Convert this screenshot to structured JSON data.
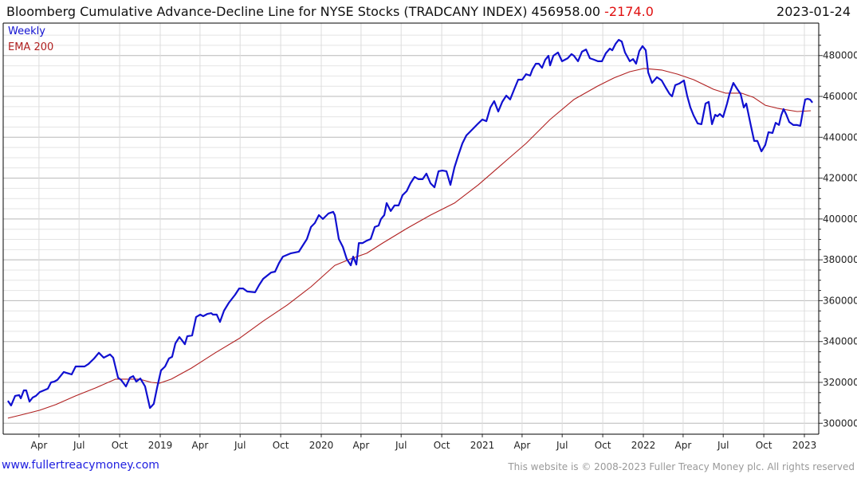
{
  "header": {
    "title": "Bloomberg Cumulative Advance-Decline Line for NYSE Stocks (TRADCANY INDEX)",
    "last_value": "456958.00",
    "change": "-2174.0",
    "date": "2023-01-24"
  },
  "footer": {
    "url": "www.fullertreacymoney.com",
    "copyright": "This website is © 2008-2023 Fuller Treacy Money plc. All rights reserved"
  },
  "colors": {
    "weekly": "#1010d0",
    "ema": "#b02020",
    "change": "#e01010"
  },
  "chart_data": {
    "type": "line",
    "title": "Bloomberg Cumulative Advance-Decline Line for NYSE Stocks (TRADCANY INDEX)",
    "xlabel": "",
    "ylabel": "",
    "ylim": [
      296000,
      494000
    ],
    "xlim": [
      2018.0,
      2023.1
    ],
    "grid": true,
    "legend_placement": "top-left",
    "y_ticks": [
      "300000",
      "320000",
      "340000",
      "360000",
      "380000",
      "400000",
      "420000",
      "440000",
      "460000",
      "480000"
    ],
    "x_ticks": [
      {
        "label": "Apr",
        "t": 2018.247
      },
      {
        "label": "Jul",
        "t": 2018.496
      },
      {
        "label": "Oct",
        "t": 2018.748
      },
      {
        "label": "2019",
        "t": 2019.0
      },
      {
        "label": "Apr",
        "t": 2019.247
      },
      {
        "label": "Jul",
        "t": 2019.496
      },
      {
        "label": "Oct",
        "t": 2019.748
      },
      {
        "label": "2020",
        "t": 2020.0
      },
      {
        "label": "Apr",
        "t": 2020.247
      },
      {
        "label": "Jul",
        "t": 2020.496
      },
      {
        "label": "Oct",
        "t": 2020.748
      },
      {
        "label": "2021",
        "t": 2021.0
      },
      {
        "label": "Apr",
        "t": 2021.247
      },
      {
        "label": "Jul",
        "t": 2021.496
      },
      {
        "label": "Oct",
        "t": 2021.748
      },
      {
        "label": "2022",
        "t": 2022.0
      },
      {
        "label": "Apr",
        "t": 2022.247
      },
      {
        "label": "Jul",
        "t": 2022.496
      },
      {
        "label": "Oct",
        "t": 2022.748
      },
      {
        "label": "2023",
        "t": 2023.0
      }
    ],
    "series": [
      {
        "name": "Weekly",
        "t": [
          2018.054,
          2018.074,
          2018.099,
          2018.124,
          2018.134,
          2018.153,
          2018.168,
          2018.188,
          2018.208,
          2018.228,
          2018.252,
          2018.277,
          2018.302,
          2018.322,
          2018.342,
          2018.361,
          2018.401,
          2018.416,
          2018.45,
          2018.475,
          2018.5,
          2018.53,
          2018.554,
          2018.589,
          2018.619,
          2018.649,
          2018.688,
          2018.708,
          2018.738,
          2018.757,
          2018.787,
          2018.812,
          2018.832,
          2018.851,
          2018.876,
          2018.906,
          2018.936,
          2018.946,
          2018.96,
          2018.98,
          2019.005,
          2019.03,
          2019.054,
          2019.074,
          2019.094,
          2019.119,
          2019.134,
          2019.153,
          2019.168,
          2019.198,
          2019.223,
          2019.248,
          2019.267,
          2019.292,
          2019.317,
          2019.327,
          2019.351,
          2019.371,
          2019.396,
          2019.426,
          2019.465,
          2019.49,
          2019.515,
          2019.54,
          2019.589,
          2019.614,
          2019.639,
          2019.688,
          2019.713,
          2019.738,
          2019.762,
          2019.812,
          2019.861,
          2019.911,
          2019.936,
          2019.96,
          2019.985,
          2020.01,
          2020.045,
          2020.074,
          2020.084,
          2020.109,
          2020.134,
          2020.158,
          2020.183,
          2020.198,
          2020.218,
          2020.233,
          2020.257,
          2020.282,
          2020.307,
          2020.332,
          2020.356,
          2020.371,
          2020.391,
          2020.406,
          2020.431,
          2020.455,
          2020.48,
          2020.505,
          2020.53,
          2020.554,
          2020.579,
          2020.604,
          2020.629,
          2020.653,
          2020.678,
          2020.703,
          2020.728,
          2020.752,
          2020.777,
          2020.802,
          2020.827,
          2020.851,
          2020.876,
          2020.901,
          2020.926,
          2020.95,
          2020.975,
          2021.0,
          2021.025,
          2021.05,
          2021.074,
          2021.099,
          2021.124,
          2021.149,
          2021.173,
          2021.198,
          2021.223,
          2021.248,
          2021.272,
          2021.297,
          2021.312,
          2021.332,
          2021.351,
          2021.371,
          2021.391,
          2021.411,
          2021.421,
          2021.441,
          2021.47,
          2021.495,
          2021.53,
          2021.554,
          2021.569,
          2021.594,
          2021.619,
          2021.644,
          2021.668,
          2021.693,
          2021.718,
          2021.743,
          2021.767,
          2021.792,
          2021.807,
          2021.827,
          2021.847,
          2021.866,
          2021.886,
          2021.916,
          2021.936,
          2021.955,
          2021.975,
          2021.995,
          2022.015,
          2022.03,
          2022.054,
          2022.084,
          2022.114,
          2022.139,
          2022.163,
          2022.178,
          2022.198,
          2022.223,
          2022.252,
          2022.272,
          2022.292,
          2022.312,
          2022.337,
          2022.361,
          2022.386,
          2022.406,
          2022.426,
          2022.446,
          2022.46,
          2022.475,
          2022.495,
          2022.52,
          2022.535,
          2022.559,
          2022.584,
          2022.604,
          2022.624,
          2022.639,
          2022.668,
          2022.688,
          2022.708,
          2022.733,
          2022.757,
          2022.777,
          2022.802,
          2022.822,
          2022.842,
          2022.856,
          2022.871,
          2022.886,
          2022.906,
          2022.931,
          2022.955,
          2022.975,
          2022.995,
          2023.005,
          2023.02,
          2023.035,
          2023.05
        ],
        "values": [
          311000,
          308700,
          313400,
          313800,
          312200,
          316100,
          316100,
          310600,
          312600,
          313400,
          315300,
          316100,
          316900,
          320000,
          320400,
          321200,
          325100,
          324700,
          323900,
          327800,
          327800,
          327800,
          329000,
          331700,
          334500,
          332100,
          333700,
          332100,
          322300,
          321200,
          318000,
          322300,
          323100,
          320400,
          321900,
          318000,
          307500,
          308300,
          309500,
          317300,
          325900,
          327800,
          331700,
          332500,
          339100,
          342200,
          340700,
          338700,
          342600,
          343000,
          352000,
          353200,
          352400,
          353500,
          353900,
          353200,
          353200,
          349600,
          355100,
          359000,
          362900,
          366000,
          366000,
          364500,
          364100,
          367600,
          370700,
          373800,
          374200,
          378500,
          381600,
          383200,
          384000,
          390200,
          396100,
          398000,
          401900,
          400000,
          402700,
          403500,
          401900,
          390200,
          386300,
          380500,
          377300,
          381600,
          377700,
          388200,
          388200,
          389400,
          390200,
          396100,
          396800,
          400000,
          401900,
          407800,
          403900,
          406600,
          406600,
          411700,
          413600,
          417500,
          420600,
          419500,
          419500,
          422200,
          417500,
          415500,
          423400,
          423700,
          423400,
          416700,
          425300,
          431200,
          437000,
          440900,
          442900,
          444800,
          446800,
          448700,
          447900,
          454600,
          457700,
          452600,
          457300,
          460400,
          458500,
          463500,
          468200,
          468200,
          470900,
          470200,
          473300,
          476000,
          476000,
          474000,
          478000,
          479900,
          475200,
          479900,
          481500,
          477200,
          478700,
          480700,
          479900,
          477200,
          481900,
          483000,
          478700,
          478000,
          477200,
          477200,
          481100,
          483400,
          482600,
          485700,
          487700,
          486900,
          481500,
          477200,
          478300,
          476000,
          482200,
          484600,
          482600,
          471700,
          466600,
          469400,
          467800,
          464300,
          461200,
          460000,
          465500,
          466300,
          467800,
          460400,
          454600,
          450700,
          446800,
          446400,
          456500,
          457300,
          446400,
          451000,
          450300,
          451400,
          449900,
          456500,
          461200,
          466600,
          463500,
          461200,
          454600,
          456500,
          445600,
          438200,
          438200,
          433100,
          436200,
          442500,
          442100,
          447100,
          446000,
          450700,
          453800,
          451400,
          447500,
          446000,
          446000,
          445600,
          454600,
          458500,
          458800,
          458500,
          456958
        ]
      },
      {
        "name": "EMA 200",
        "t": [
          2018.054,
          2018.153,
          2018.252,
          2018.351,
          2018.475,
          2018.599,
          2018.723,
          2018.797,
          2018.871,
          2018.946,
          2018.995,
          2019.069,
          2019.193,
          2019.342,
          2019.49,
          2019.639,
          2019.787,
          2019.936,
          2020.084,
          2020.183,
          2020.282,
          2020.381,
          2020.53,
          2020.678,
          2020.827,
          2020.975,
          2021.124,
          2021.272,
          2021.421,
          2021.569,
          2021.718,
          2021.817,
          2021.916,
          2022.005,
          2022.114,
          2022.213,
          2022.312,
          2022.436,
          2022.51,
          2022.609,
          2022.683,
          2022.757,
          2022.832,
          2022.955,
          2023.04
        ],
        "values": [
          302500,
          304400,
          306400,
          309100,
          313400,
          317300,
          321600,
          321600,
          321600,
          320000,
          319600,
          321600,
          327000,
          334500,
          341500,
          350000,
          357800,
          366800,
          377300,
          380500,
          383200,
          388200,
          395300,
          401900,
          407800,
          416700,
          426900,
          437000,
          448700,
          458500,
          465100,
          469000,
          472100,
          473700,
          472900,
          470900,
          468200,
          463500,
          461600,
          461600,
          459600,
          455700,
          454200,
          452600,
          453000
        ]
      }
    ]
  }
}
